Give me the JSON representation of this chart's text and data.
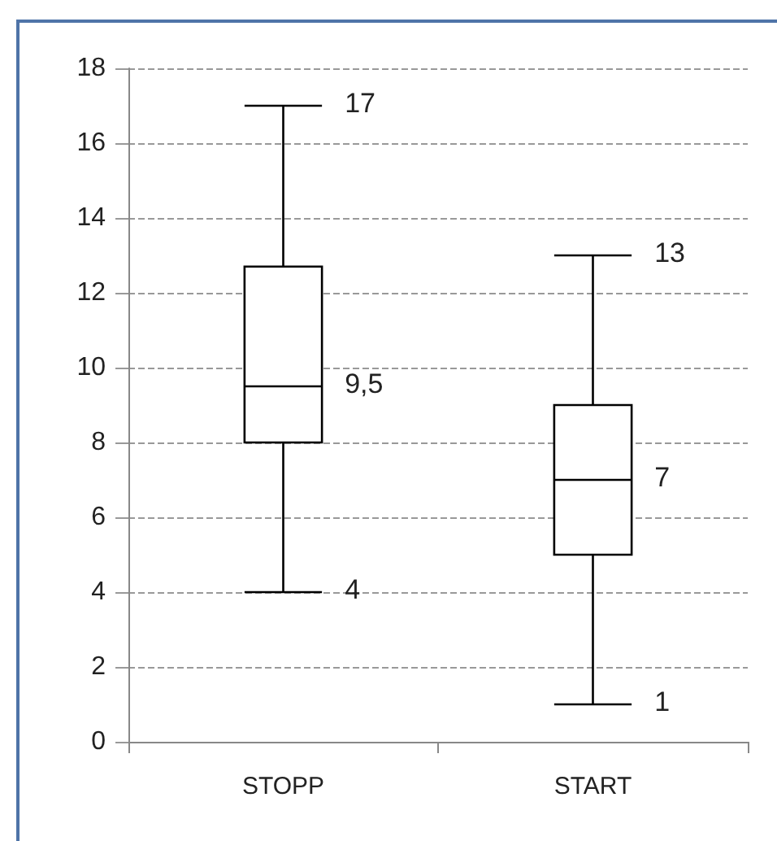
{
  "chart_data": {
    "type": "box",
    "categories": [
      "STOPP",
      "START"
    ],
    "boxes": [
      {
        "low": 4,
        "q1": 8,
        "median": 9.5,
        "q3": 12.7,
        "high": 17
      },
      {
        "low": 1,
        "q1": 5,
        "median": 7,
        "q3": 9,
        "high": 13
      }
    ],
    "color": "#000000",
    "ylim": [
      0,
      18
    ],
    "yticks": [
      0,
      2,
      4,
      6,
      8,
      10,
      12,
      14,
      16,
      18
    ],
    "grid": "y",
    "annotations": [
      {
        "text": "17",
        "x": "STOPP",
        "y": 17
      },
      {
        "text": "9,5",
        "x": "STOPP",
        "y": 9.5
      },
      {
        "text": "4",
        "x": "STOPP",
        "y": 4
      },
      {
        "text": "13",
        "x": "START",
        "y": 13
      },
      {
        "text": "7",
        "x": "START",
        "y": 7
      },
      {
        "text": "1",
        "x": "START",
        "y": 1
      }
    ]
  }
}
